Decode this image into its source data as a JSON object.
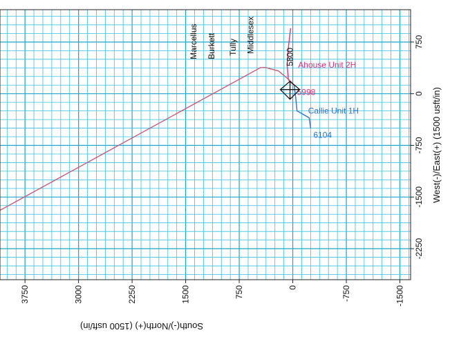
{
  "chart_data": {
    "type": "line",
    "title": "",
    "xlabel": "South(-)/North(+) (1500 usft/in)",
    "ylabel": "West(-)/East(+) (1500 usft/in)",
    "x_range": [
      -1650,
      4100
    ],
    "y_range": [
      -2700,
      1220
    ],
    "x_orientation": "reversed (north to the left)",
    "grid": true,
    "x_ticks": [
      "3750",
      "3000",
      "2250",
      "1500",
      "750",
      "0",
      "-750",
      "-1500"
    ],
    "y_ticks": [
      "750",
      "0",
      "-750",
      "-1500",
      "-2250"
    ],
    "series": [
      {
        "name": "Ahouse Unit 2H",
        "color": "#e0307a",
        "points": [
          [
            30,
            950
          ],
          [
            60,
            680
          ],
          [
            80,
            420
          ],
          [
            60,
            200
          ],
          [
            -20,
            120
          ]
        ],
        "end_label": "5998"
      },
      {
        "name": "Callie Unit 1H",
        "color": "#2e6fd0",
        "points": [
          [
            -20,
            120
          ],
          [
            -40,
            -50
          ],
          [
            -60,
            -250
          ],
          [
            -230,
            -350
          ],
          [
            -250,
            -500
          ]
        ],
        "end_label": "6104"
      },
      {
        "name": "",
        "color": "#c85a7a",
        "points": [
          [
            4200,
            -1750
          ],
          [
            450,
            380
          ],
          [
            380,
            380
          ],
          [
            200,
            330
          ],
          [
            50,
            200
          ],
          [
            -20,
            120
          ]
        ],
        "end_label": ""
      }
    ],
    "annotations": [
      {
        "text": "5800",
        "color": "#2e6fd0",
        "x": 0,
        "y": 400
      },
      {
        "text": "Marcellus",
        "x": 1350,
        "y": 500
      },
      {
        "text": "Burkett",
        "x": 1100,
        "y": 500
      },
      {
        "text": "Tully",
        "x": 800,
        "y": 550
      },
      {
        "text": "Middlesex",
        "x": 550,
        "y": 580
      }
    ]
  }
}
